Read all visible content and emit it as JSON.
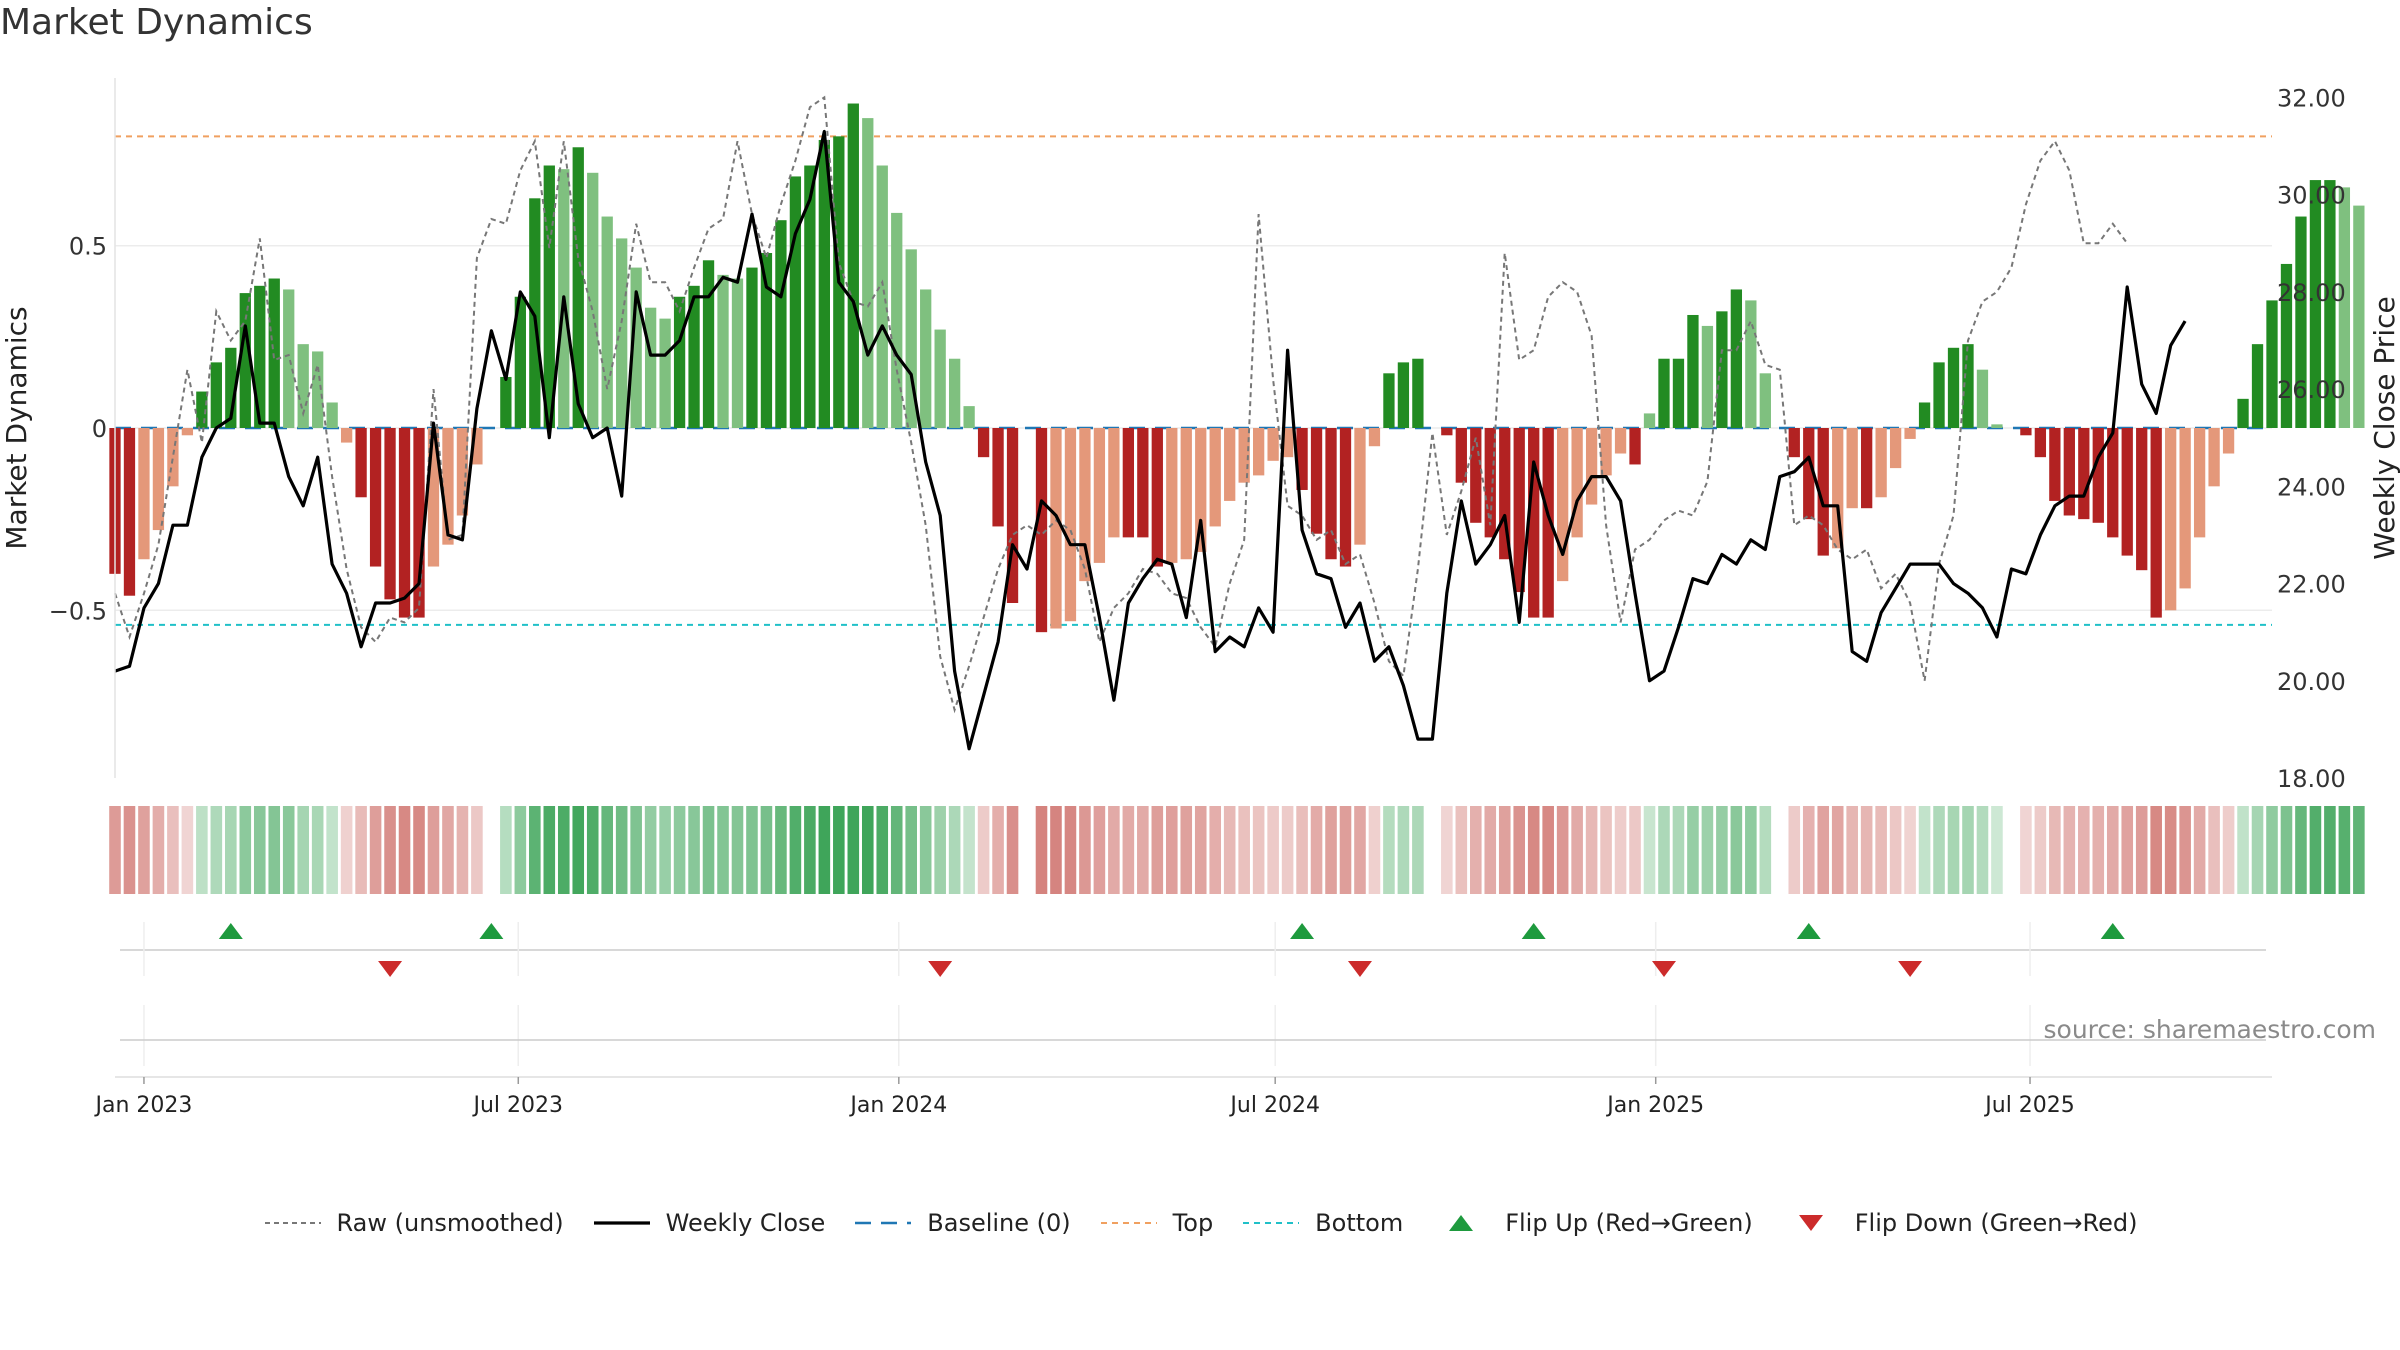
{
  "title": "Market Dynamics",
  "source": "source: sharemaestro.com",
  "chart_data": {
    "type": "bar",
    "title": "Market Dynamics",
    "ylabel_left": "Market Dynamics",
    "ylabel_right": "Weekly Close Price",
    "ylim_left": [
      -0.96,
      0.96
    ],
    "ylim_right": [
      18.0,
      32.4
    ],
    "left_ticks": [
      {
        "value": 0.5,
        "label": "0.5"
      },
      {
        "value": 0,
        "label": "0"
      },
      {
        "value": -0.5,
        "label": "−0.5"
      }
    ],
    "right_ticks": [
      {
        "value": 32,
        "label": "32.00"
      },
      {
        "value": 30,
        "label": "30.00"
      },
      {
        "value": 28,
        "label": "28.00"
      },
      {
        "value": 26,
        "label": "26.00"
      },
      {
        "value": 24,
        "label": "24.00"
      },
      {
        "value": 22,
        "label": "22.00"
      },
      {
        "value": 20,
        "label": "20.00"
      },
      {
        "value": 18,
        "label": "18.00"
      }
    ],
    "x_ticks": [
      {
        "date": "2023-01-01",
        "label": "Jan 2023"
      },
      {
        "date": "2023-07-01",
        "label": "Jul 2023"
      },
      {
        "date": "2024-01-01",
        "label": "Jan 2024"
      },
      {
        "date": "2024-07-01",
        "label": "Jul 2024"
      },
      {
        "date": "2025-01-01",
        "label": "Jan 2025"
      },
      {
        "date": "2025-07-01",
        "label": "Jul 2025"
      }
    ],
    "x_range": [
      "2022-12-18",
      "2025-10-26"
    ],
    "top_level": 0.8,
    "bottom_level": -0.54,
    "baseline": 0,
    "week_start": "2022-12-18",
    "dynamics": [
      -0.4,
      -0.46,
      -0.36,
      -0.28,
      -0.16,
      -0.02,
      0.1,
      0.18,
      0.22,
      0.37,
      0.39,
      0.41,
      0.38,
      0.23,
      0.21,
      0.07,
      -0.04,
      -0.19,
      -0.38,
      -0.47,
      -0.52,
      -0.52,
      -0.38,
      -0.32,
      -0.24,
      -0.1,
      0.0,
      0.14,
      0.36,
      0.63,
      0.72,
      0.71,
      0.77,
      0.7,
      0.58,
      0.52,
      0.44,
      0.33,
      0.3,
      0.36,
      0.39,
      0.46,
      0.42,
      0.41,
      0.44,
      0.48,
      0.57,
      0.69,
      0.72,
      0.79,
      0.8,
      0.89,
      0.85,
      0.72,
      0.59,
      0.49,
      0.38,
      0.27,
      0.19,
      0.06,
      -0.08,
      -0.27,
      -0.48,
      0.0,
      -0.56,
      -0.55,
      -0.53,
      -0.42,
      -0.37,
      -0.3,
      -0.3,
      -0.3,
      -0.38,
      -0.37,
      -0.36,
      -0.34,
      -0.27,
      -0.2,
      -0.15,
      -0.13,
      -0.09,
      -0.08,
      -0.17,
      -0.29,
      -0.36,
      -0.38,
      -0.32,
      -0.05,
      0.15,
      0.18,
      0.19,
      0.0,
      -0.02,
      -0.15,
      -0.26,
      -0.3,
      -0.36,
      -0.45,
      -0.52,
      -0.52,
      -0.42,
      -0.3,
      -0.21,
      -0.13,
      -0.07,
      -0.1,
      0.04,
      0.19,
      0.19,
      0.31,
      0.28,
      0.32,
      0.38,
      0.35,
      0.15,
      0.0,
      -0.08,
      -0.25,
      -0.35,
      -0.33,
      -0.22,
      -0.22,
      -0.19,
      -0.11,
      -0.03,
      0.07,
      0.18,
      0.22,
      0.23,
      0.16,
      0.01,
      0.0,
      -0.02,
      -0.08,
      -0.2,
      -0.24,
      -0.25,
      -0.26,
      -0.3,
      -0.35,
      -0.39,
      -0.52,
      -0.5,
      -0.44,
      -0.3,
      -0.16,
      -0.07,
      0.08,
      0.23,
      0.35,
      0.45,
      0.58,
      0.68,
      0.68,
      0.66,
      0.61
    ],
    "price": [
      20.2,
      20.3,
      21.5,
      22.0,
      23.2,
      23.2,
      24.6,
      25.2,
      25.4,
      27.3,
      25.3,
      25.3,
      24.2,
      23.6,
      24.6,
      22.4,
      21.8,
      20.7,
      21.6,
      21.6,
      21.7,
      22.0,
      25.3,
      23.0,
      22.9,
      25.6,
      27.2,
      26.2,
      28.0,
      27.5,
      25.0,
      27.9,
      25.7,
      25.0,
      25.2,
      23.8,
      28.0,
      26.7,
      26.7,
      27.0,
      27.9,
      27.9,
      28.3,
      28.2,
      29.6,
      28.1,
      27.9,
      29.2,
      29.9,
      31.3,
      28.2,
      27.8,
      26.7,
      27.3,
      26.7,
      26.3,
      24.5,
      23.4,
      20.2,
      18.6,
      19.7,
      20.8,
      22.8,
      22.3,
      23.7,
      23.4,
      22.8,
      22.8,
      21.3,
      19.6,
      21.6,
      22.1,
      22.5,
      22.4,
      21.3,
      23.3,
      20.6,
      20.9,
      20.7,
      21.5,
      21.0,
      26.8,
      23.1,
      22.2,
      22.1,
      21.1,
      21.6,
      20.4,
      20.7,
      19.9,
      18.8,
      18.8,
      21.8,
      23.7,
      22.4,
      22.8,
      23.4,
      21.2,
      24.5,
      23.4,
      22.6,
      23.7,
      24.2,
      24.2,
      23.7,
      21.8,
      20.0,
      20.2,
      21.1,
      22.1,
      22.0,
      22.6,
      22.4,
      22.9,
      22.7,
      24.2,
      24.3,
      24.6,
      23.6,
      23.6,
      20.6,
      20.4,
      21.4,
      21.9,
      22.4,
      22.4,
      22.4,
      22.0,
      21.8,
      21.5,
      20.9,
      22.3,
      22.2,
      23.0,
      23.6,
      23.8,
      23.8,
      24.6,
      25.1,
      28.1,
      26.1,
      25.5,
      26.9,
      27.4
    ],
    "raw": [
      21.8,
      20.9,
      21.8,
      22.8,
      24.6,
      26.4,
      24.9,
      27.6,
      27.0,
      27.4,
      29.1,
      26.6,
      26.7,
      25.5,
      26.5,
      24.2,
      22.3,
      21.1,
      20.8,
      21.3,
      21.2,
      21.5,
      26.0,
      22.9,
      23.0,
      28.7,
      29.5,
      29.4,
      30.5,
      31.1,
      28.9,
      31.1,
      28.7,
      27.6,
      26.0,
      27.4,
      29.4,
      28.2,
      28.2,
      27.6,
      28.5,
      29.3,
      29.5,
      31.1,
      29.6,
      28.7,
      29.8,
      30.7,
      31.8,
      32.0,
      28.6,
      27.8,
      27.7,
      28.2,
      26.4,
      24.9,
      23.2,
      20.5,
      19.4,
      20.3,
      21.3,
      22.3,
      23.0,
      23.2,
      23.0,
      23.3,
      23.1,
      22.3,
      20.8,
      21.5,
      21.8,
      22.3,
      22.2,
      21.8,
      21.7,
      21.1,
      20.7,
      22.0,
      22.9,
      29.6,
      26.2,
      23.6,
      23.4,
      22.9,
      23.1,
      22.4,
      22.6,
      21.6,
      20.4,
      20.1,
      22.3,
      25.1,
      23.0,
      23.9,
      25.0,
      23.2,
      28.8,
      26.6,
      26.8,
      27.9,
      28.2,
      28.0,
      27.1,
      23.2,
      21.2,
      22.7,
      22.9,
      23.3,
      23.5,
      23.4,
      24.1,
      26.8,
      26.8,
      27.4,
      26.5,
      26.4,
      23.2,
      23.4,
      23.2,
      22.7,
      22.5,
      22.7,
      21.9,
      22.2,
      21.6,
      20.0,
      22.4,
      23.4,
      27.0,
      27.8,
      28.0,
      28.5,
      29.8,
      30.7,
      31.1,
      30.5,
      29.0,
      29.0,
      29.4,
      29.0
    ]
  },
  "flips_up": [
    "2023-02-12",
    "2023-06-18",
    "2024-07-14",
    "2024-11-03",
    "2025-03-16",
    "2025-08-10"
  ],
  "flips_down": [
    "2023-04-30",
    "2024-01-21",
    "2024-08-11",
    "2025-01-05",
    "2025-05-04"
  ],
  "legend": [
    {
      "label": "Raw (unsmoothed)",
      "swatch": "dashed-gray"
    },
    {
      "label": "Weekly Close",
      "swatch": "solid-black"
    },
    {
      "label": "Baseline (0)",
      "swatch": "dashed-blue"
    },
    {
      "label": "Top",
      "swatch": "dashed-orange"
    },
    {
      "label": "Bottom",
      "swatch": "dashed-cyan"
    },
    {
      "label": "Flip Up (Red→Green)",
      "swatch": "triangle-up-green"
    },
    {
      "label": "Flip Down (Green→Red)",
      "swatch": "triangle-down-red"
    }
  ],
  "colors": {
    "green_dark": "#228b22",
    "green_light": "#7fc07f",
    "red_dark": "#b22222",
    "red_light": "#e4987a",
    "price": "#000000",
    "raw": "#777777",
    "baseline": "#1f77b4",
    "top": "#f0a060",
    "bottom": "#20c0c8",
    "flip_up": "#1e9a3e",
    "flip_down": "#cc2b2b"
  }
}
